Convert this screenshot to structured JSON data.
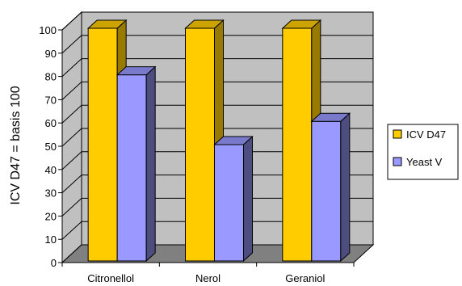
{
  "chart_data": {
    "type": "bar",
    "style": "3d-clustered-column",
    "categories": [
      "Citronellol",
      "Nerol",
      "Geraniol"
    ],
    "series": [
      {
        "name": "ICV D47",
        "values": [
          100,
          100,
          100
        ],
        "color": "#FFCC00",
        "side_color": "#997A00",
        "top_color": "#CCA300"
      },
      {
        "name": "Yeast V",
        "values": [
          80,
          50,
          60
        ],
        "color": "#9999FF",
        "side_color": "#4D4D80",
        "top_color": "#7A7ACC"
      }
    ],
    "ylabel": "ICV D47 = basis 100",
    "xlabel": "",
    "title": "",
    "ylim": [
      0,
      100
    ],
    "yticks": [
      0,
      10,
      20,
      30,
      40,
      50,
      60,
      70,
      80,
      90,
      100
    ],
    "grid": true,
    "wall_color": "#C0C0C0",
    "floor_color": "#808080",
    "legend_position": "right"
  }
}
